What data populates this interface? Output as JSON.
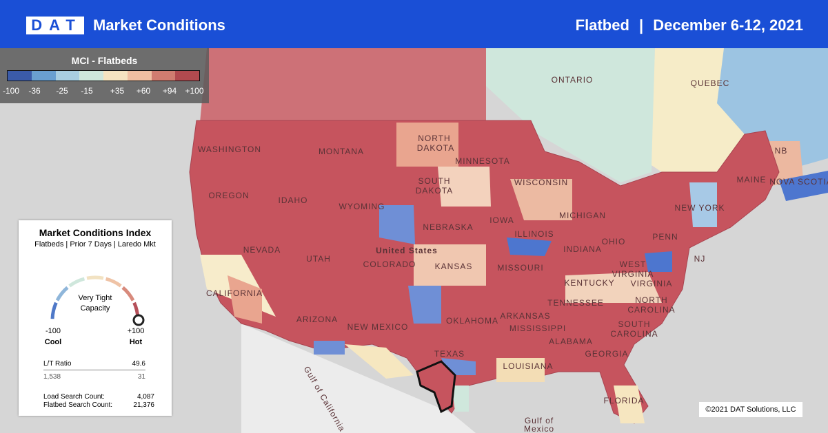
{
  "header": {
    "logo": "DAT",
    "title": "Market Conditions",
    "product": "Flatbed",
    "separator": "|",
    "date": "December 6-12, 2021"
  },
  "legend": {
    "title": "MCI - Flatbeds",
    "labels": [
      "-100",
      "-36",
      "-25",
      "-15",
      "+35",
      "+60",
      "+94",
      "+100"
    ]
  },
  "panel": {
    "title": "Market Conditions Index",
    "subtitle": "Flatbeds | Prior 7 Days | Laredo Mkt",
    "gauge_text": [
      "Very Tight",
      "Capacity"
    ],
    "min": "-100",
    "max": "+100",
    "min_label": "Cool",
    "max_label": "Hot",
    "lt_ratio_label": "L/T Ratio",
    "lt_ratio": "49.6",
    "loads": "1,538",
    "trucks": "31",
    "load_search_label": "Load Search Count:",
    "load_search": "4,087",
    "flatbed_search_label": "Flatbed Search Count:",
    "flatbed_search": "21,376"
  },
  "map_labels": [
    "ONTARIO",
    "QUEBEC",
    "NB",
    "NOVA SCOTIA",
    "MAINE",
    "WASHINGTON",
    "MONTANA",
    "NORTH",
    "DAKOTA",
    "MINNESOTA",
    "OREGON",
    "IDAHO",
    "WYOMING",
    "SOUTH",
    "DAKOTA",
    "WISCONSIN",
    "MICHIGAN",
    "NEBRASKA",
    "IOWA",
    "United States",
    "NEVADA",
    "UTAH",
    "COLORADO",
    "KANSAS",
    "MISSOURI",
    "ILLINOIS",
    "INDIANA",
    "OHIO",
    "PENN",
    "NEW YORK",
    "NJ",
    "CALIFORNIA",
    "ARIZONA",
    "NEW MEXICO",
    "OKLAHOMA",
    "ARKANSAS",
    "TENNESSEE",
    "KENTUCKY",
    "VIRGINIA",
    "WEST",
    "VIRGINIA",
    "NORTH",
    "CAROLINA",
    "SOUTH",
    "CAROLINA",
    "MISSISSIPPI",
    "ALABAMA",
    "GEORGIA",
    "LOUISIANA",
    "TEXAS",
    "FLORIDA",
    "Gulf of",
    "Mexico",
    "Gulf of California"
  ],
  "copyright": "©2021 DAT Solutions, LLC"
}
